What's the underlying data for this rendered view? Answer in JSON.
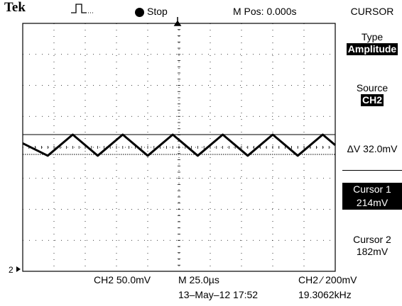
{
  "header": {
    "brand": "Tek",
    "trigger_icon": "trigger-pulse-icon",
    "run_status": "Stop",
    "m_pos": "M Pos: 0.000s"
  },
  "menu": {
    "title": "CURSOR",
    "type_label": "Type",
    "type_value": "Amplitude",
    "source_label": "Source",
    "source_value": "CH2",
    "delta_v": "ΔV 32.0mV",
    "cursor1_label": "Cursor 1",
    "cursor1_value": "214mV",
    "cursor2_label": "Cursor 2",
    "cursor2_value": "182mV"
  },
  "channel": {
    "marker": "2"
  },
  "footer": {
    "ch2_scale": "CH2  50.0mV",
    "time_scale": "M 25.0µs",
    "trigger": "CH2 ∕ 200mV",
    "date": "13–May–12 17:52",
    "frequency": "19.3062kHz"
  },
  "chart_data": {
    "type": "line",
    "title": "",
    "xlabel": "",
    "ylabel": "",
    "grid": true,
    "divisions": {
      "x": 10,
      "y": 8
    },
    "cursors_mV": [
      214,
      182
    ],
    "series": [
      {
        "x": [
          0,
          20,
          40,
          60,
          80,
          100,
          120,
          140,
          160,
          180,
          200,
          220,
          240,
          250
        ],
        "y": [
          200,
          180,
          214,
          180,
          214,
          180,
          214,
          180,
          214,
          180,
          214,
          180,
          214,
          197
        ]
      }
    ]
  }
}
